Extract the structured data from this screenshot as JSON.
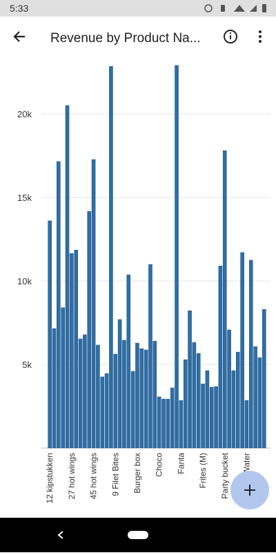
{
  "status_bar": {
    "time": "5:33"
  },
  "app_bar": {
    "title": "Revenue by Product Na..."
  },
  "chart_data": {
    "type": "bar",
    "categories": [
      "12 kipstukken",
      null,
      null,
      null,
      null,
      "27 hot wings",
      null,
      null,
      null,
      null,
      "45 hot wings",
      null,
      null,
      null,
      null,
      "9 Filet Bites",
      null,
      null,
      null,
      null,
      "Burger box",
      null,
      null,
      null,
      null,
      "Choco",
      null,
      null,
      null,
      null,
      "Fanta",
      null,
      null,
      null,
      null,
      "Frites (M)",
      null,
      null,
      null,
      null,
      "Party bucket",
      null,
      null,
      null,
      null,
      "Water",
      null,
      null,
      null,
      null
    ],
    "values": [
      13600,
      7150,
      17150,
      8400,
      20500,
      11650,
      11850,
      6530,
      6780,
      14170,
      17270,
      6160,
      4260,
      4460,
      22850,
      5620,
      7690,
      6450,
      10370,
      4590,
      6280,
      5950,
      5870,
      10990,
      6400,
      3060,
      2930,
      2930,
      3600,
      22900,
      2850,
      5290,
      8220,
      6320,
      5660,
      3840,
      4630,
      3640,
      3680,
      10900,
      17800,
      7070,
      4630,
      5740,
      11700,
      2850,
      11240,
      6070,
      5410,
      8300
    ],
    "color": "#2f6ea6",
    "ylim": [
      0,
      23100
    ],
    "yticks": [
      {
        "value": 5000,
        "label": "5k"
      },
      {
        "value": 10000,
        "label": "10k"
      },
      {
        "value": 15000,
        "label": "15k"
      },
      {
        "value": 20000,
        "label": "20k"
      }
    ],
    "grid": true
  }
}
